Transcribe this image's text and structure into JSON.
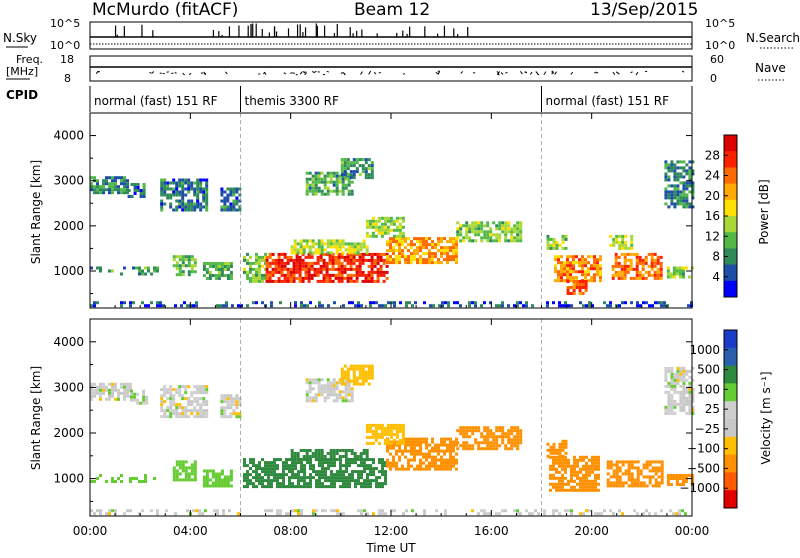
{
  "header": {
    "station": "McMurdo (fitACF)",
    "beam": "Beam 12",
    "date": "13/Sep/2015"
  },
  "top_panels": {
    "nsky_label": "N.Sky",
    "nsky_ticks": [
      "10^5",
      "10^0"
    ],
    "nsearch_label": "N.Search",
    "nsearch_ticks": [
      "10^5",
      "10^0"
    ],
    "freq_label": "Freq.",
    "freq_unit": "[MHz]",
    "freq_ticks": [
      "18",
      "8"
    ],
    "nave_label": "Nave",
    "nave_ticks": [
      "60",
      "0"
    ],
    "cpid_label": "CPID"
  },
  "cpid_segments": [
    {
      "label": "normal (fast) 151 RF",
      "start_h": 0.0,
      "end_h": 6.0
    },
    {
      "label": "themis 3300 RF",
      "start_h": 6.0,
      "end_h": 18.0
    },
    {
      "label": "normal (fast) 151 RF",
      "start_h": 18.0,
      "end_h": 24.0
    }
  ],
  "colors": {
    "power_scale": [
      "#0000ff",
      "#1d4fa8",
      "#2f8a5a",
      "#52b848",
      "#a8d838",
      "#ffe000",
      "#ffaa00",
      "#ff6a00",
      "#ff2000",
      "#dd0000"
    ],
    "velocity_scale": [
      "#e00000",
      "#ff5a00",
      "#ff9000",
      "#ffbf00",
      "#c8c8c8",
      "#cfcfcf",
      "#66cc33",
      "#2f8a3f",
      "#2a5fb0",
      "#1b3cc8"
    ]
  },
  "chart_data": [
    {
      "type": "heatmap",
      "name": "power",
      "xlabel": "Time UT",
      "ylabel": "Slant Range [km]",
      "x_ticks": [
        "00:00",
        "04:00",
        "08:00",
        "12:00",
        "16:00",
        "20:00",
        "00:00"
      ],
      "x_range_h": [
        0,
        24
      ],
      "y_ticks": [
        "1000",
        "2000",
        "3000",
        "4000"
      ],
      "y_range_km": [
        180,
        4500
      ],
      "colorbar_label": "Power [dB]",
      "colorbar_ticks": [
        "4",
        "8",
        "12",
        "16",
        "20",
        "24",
        "28"
      ],
      "colorbar_range": [
        0,
        30
      ],
      "scatter_blobs": [
        {
          "t0": 0.0,
          "t1": 1.5,
          "r0": 2750,
          "r1": 3100,
          "v": 7
        },
        {
          "t0": 1.5,
          "t1": 2.2,
          "r0": 2650,
          "r1": 2950,
          "v": 6
        },
        {
          "t0": 2.8,
          "t1": 4.6,
          "r0": 2350,
          "r1": 3050,
          "v": 6
        },
        {
          "t0": 3.3,
          "t1": 4.2,
          "r0": 950,
          "r1": 1350,
          "v": 11
        },
        {
          "t0": 0.0,
          "t1": 2.7,
          "r0": 920,
          "r1": 1100,
          "v": 9
        },
        {
          "t0": 4.5,
          "t1": 5.6,
          "r0": 850,
          "r1": 1200,
          "v": 10
        },
        {
          "t0": 5.2,
          "t1": 6.0,
          "r0": 2350,
          "r1": 2850,
          "v": 6
        },
        {
          "t0": 6.1,
          "t1": 7.0,
          "r0": 800,
          "r1": 1400,
          "v": 12
        },
        {
          "t0": 7.0,
          "t1": 11.8,
          "r0": 800,
          "r1": 1400,
          "v": 26
        },
        {
          "t0": 8.0,
          "t1": 11.0,
          "r0": 1400,
          "r1": 1700,
          "v": 14
        },
        {
          "t0": 8.6,
          "t1": 10.4,
          "r0": 2700,
          "r1": 3200,
          "v": 9
        },
        {
          "t0": 10.0,
          "t1": 11.2,
          "r0": 3100,
          "r1": 3500,
          "v": 9
        },
        {
          "t0": 11.8,
          "t1": 14.6,
          "r0": 1200,
          "r1": 1750,
          "v": 20
        },
        {
          "t0": 11.0,
          "t1": 12.5,
          "r0": 1800,
          "r1": 2200,
          "v": 13
        },
        {
          "t0": 14.6,
          "t1": 17.2,
          "r0": 1700,
          "r1": 2100,
          "v": 12
        },
        {
          "t0": 18.2,
          "t1": 19.0,
          "r0": 1500,
          "r1": 1800,
          "v": 12
        },
        {
          "t0": 18.5,
          "t1": 20.3,
          "r0": 800,
          "r1": 1350,
          "v": 21
        },
        {
          "t0": 19.0,
          "t1": 19.8,
          "r0": 500,
          "r1": 800,
          "v": 23
        },
        {
          "t0": 20.8,
          "t1": 22.8,
          "r0": 850,
          "r1": 1400,
          "v": 22
        },
        {
          "t0": 23.0,
          "t1": 24.0,
          "r0": 900,
          "r1": 1100,
          "v": 12
        },
        {
          "t0": 22.9,
          "t1": 24.0,
          "r0": 2400,
          "r1": 3450,
          "v": 8
        },
        {
          "t0": 20.7,
          "t1": 21.6,
          "r0": 1500,
          "r1": 1800,
          "v": 14
        },
        {
          "t0": 0.0,
          "t1": 24.0,
          "r0": 200,
          "r1": 330,
          "v": 4
        }
      ]
    },
    {
      "type": "heatmap",
      "name": "velocity",
      "xlabel": "Time UT",
      "ylabel": "Slant Range [km]",
      "x_ticks": [
        "00:00",
        "04:00",
        "08:00",
        "12:00",
        "16:00",
        "20:00",
        "00:00"
      ],
      "x_range_h": [
        0,
        24
      ],
      "y_ticks": [
        "1000",
        "2000",
        "3000",
        "4000"
      ],
      "y_range_km": [
        180,
        4500
      ],
      "colorbar_label": "Velocity [m s⁻¹]",
      "colorbar_ticks": [
        "1000",
        "500",
        "100",
        "25",
        "−25",
        "−100",
        "−500",
        "−1000"
      ],
      "colorbar_range": [
        -1200,
        1200
      ],
      "scatter_blobs": [
        {
          "t0": 0.0,
          "t1": 1.6,
          "r0": 2750,
          "r1": 3100,
          "v": 0
        },
        {
          "t0": 1.6,
          "t1": 2.2,
          "r0": 2650,
          "r1": 2950,
          "v": 15
        },
        {
          "t0": 2.8,
          "t1": 4.6,
          "r0": 2350,
          "r1": 3050,
          "v": 0
        },
        {
          "t0": 3.3,
          "t1": 4.2,
          "r0": 950,
          "r1": 1400,
          "v": 60
        },
        {
          "t0": 0.0,
          "t1": 2.7,
          "r0": 920,
          "r1": 1100,
          "v": 60
        },
        {
          "t0": 4.5,
          "t1": 5.6,
          "r0": 850,
          "r1": 1200,
          "v": 60
        },
        {
          "t0": 5.2,
          "t1": 6.0,
          "r0": 2350,
          "r1": 2850,
          "v": 0
        },
        {
          "t0": 6.1,
          "t1": 11.8,
          "r0": 800,
          "r1": 1450,
          "v": 300
        },
        {
          "t0": 8.0,
          "t1": 11.0,
          "r0": 1400,
          "r1": 1650,
          "v": 300
        },
        {
          "t0": 8.6,
          "t1": 10.4,
          "r0": 2700,
          "r1": 3200,
          "v": 0
        },
        {
          "t0": 10.0,
          "t1": 11.2,
          "r0": 3100,
          "r1": 3500,
          "v": -60
        },
        {
          "t0": 11.8,
          "t1": 14.6,
          "r0": 1200,
          "r1": 1900,
          "v": -300
        },
        {
          "t0": 11.0,
          "t1": 12.5,
          "r0": 1800,
          "r1": 2200,
          "v": -60
        },
        {
          "t0": 14.6,
          "t1": 17.2,
          "r0": 1650,
          "r1": 2150,
          "v": -300
        },
        {
          "t0": 18.2,
          "t1": 19.0,
          "r0": 1500,
          "r1": 1850,
          "v": -300
        },
        {
          "t0": 18.3,
          "t1": 20.3,
          "r0": 750,
          "r1": 1500,
          "v": -300
        },
        {
          "t0": 20.6,
          "t1": 22.8,
          "r0": 850,
          "r1": 1400,
          "v": -300
        },
        {
          "t0": 22.9,
          "t1": 24.0,
          "r0": 2400,
          "r1": 3450,
          "v": 0
        },
        {
          "t0": 23.0,
          "t1": 24.0,
          "r0": 900,
          "r1": 1100,
          "v": -300
        },
        {
          "t0": 0.0,
          "t1": 24.0,
          "r0": 200,
          "r1": 330,
          "v": 0
        }
      ]
    }
  ]
}
